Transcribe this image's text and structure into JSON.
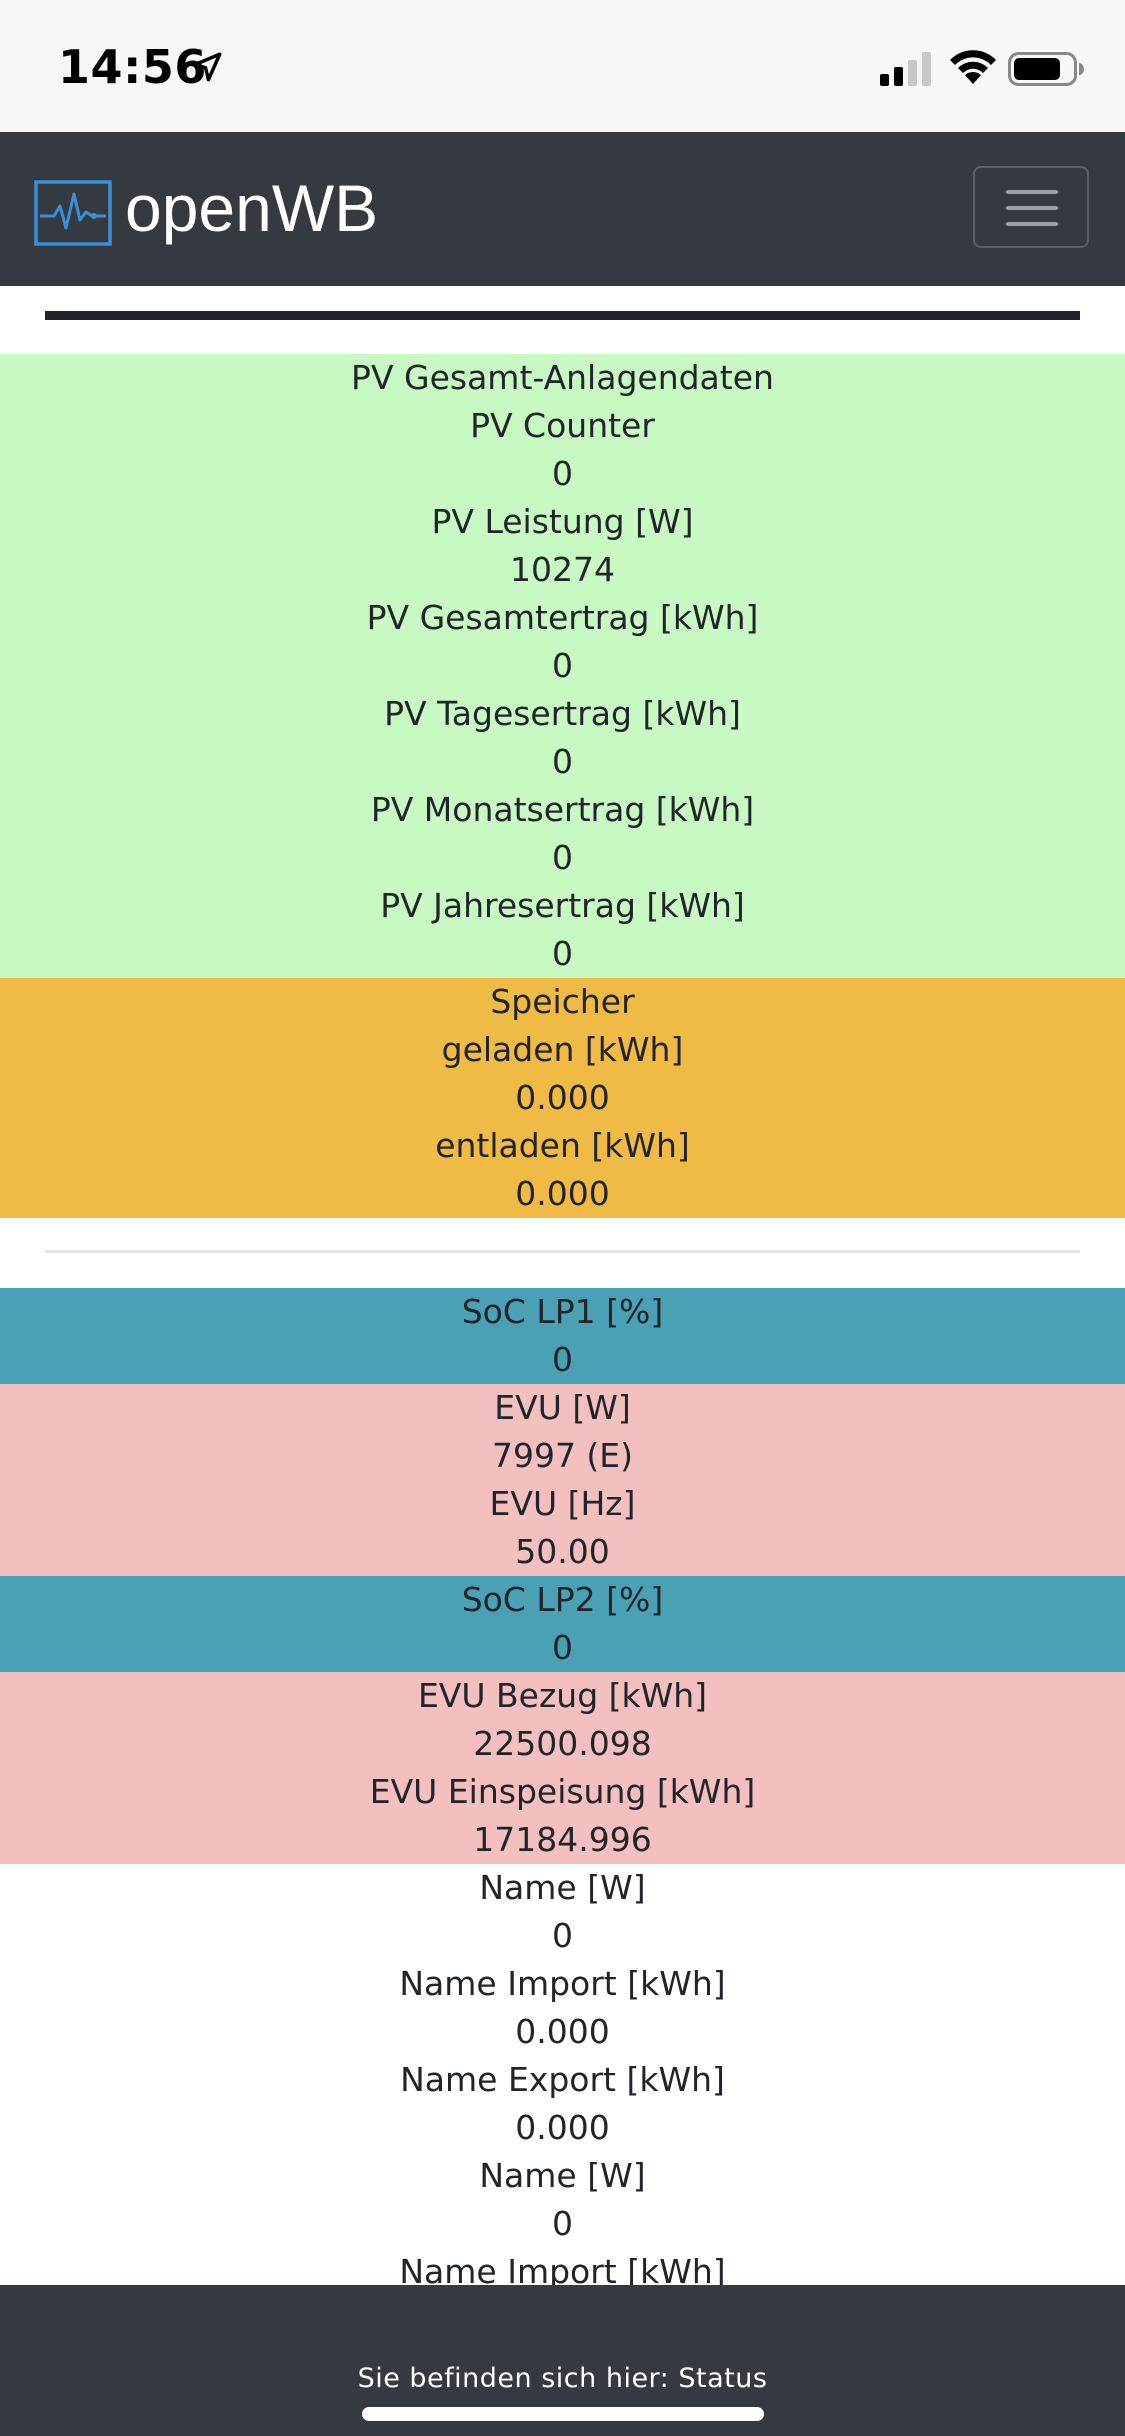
{
  "status_bar": {
    "time": "14:56",
    "icons": [
      "location-arrow-icon",
      "cellular-signal-icon",
      "wifi-icon",
      "battery-icon"
    ]
  },
  "navbar": {
    "brand": "openWB",
    "logo_icon": "pulse-chart-icon",
    "toggle_icon": "hamburger-menu-icon"
  },
  "pv": {
    "title": "PV Gesamt-Anlagendaten",
    "counter_label": "PV Counter",
    "counter_value": "0",
    "leistung_label": "PV Leistung [W]",
    "leistung_value": "10274",
    "gesamtertrag_label": "PV Gesamtertrag [kWh]",
    "gesamtertrag_value": "0",
    "tagesertrag_label": "PV Tagesertrag [kWh]",
    "tagesertrag_value": "0",
    "monatsertrag_label": "PV Monatsertrag [kWh]",
    "monatsertrag_value": "0",
    "jahresertrag_label": "PV Jahresertrag [kWh]",
    "jahresertrag_value": "0"
  },
  "speicher": {
    "title": "Speicher",
    "geladen_label": "geladen [kWh]",
    "geladen_value": "0.000",
    "entladen_label": "entladen [kWh]",
    "entladen_value": "0.000"
  },
  "soc_lp1": {
    "label": "SoC LP1 [%]",
    "value": "0"
  },
  "evu": {
    "watt_label": "EVU [W]",
    "watt_value": "7997 (E)",
    "hz_label": "EVU [Hz]",
    "hz_value": "50.00"
  },
  "soc_lp2": {
    "label": "SoC LP2 [%]",
    "value": "0"
  },
  "evu_energy": {
    "bezug_label": "EVU Bezug [kWh]",
    "bezug_value": "22500.098",
    "einspeisung_label": "EVU Einspeisung [kWh]",
    "einspeisung_value": "17184.996"
  },
  "devices": {
    "name1_w_label": "Name [W]",
    "name1_w_value": "0",
    "name1_import_label": "Name Import [kWh]",
    "name1_import_value": "0.000",
    "name1_export_label": "Name Export [kWh]",
    "name1_export_value": "0.000",
    "name2_w_label": "Name [W]",
    "name2_w_value": "0",
    "name2_import_label": "Name Import [kWh]"
  },
  "footer": {
    "location_text": "Sie befinden sich hier: Status"
  },
  "colors": {
    "navbar": "#343a40",
    "pv_green": "#c8f9c3",
    "speicher_orange": "#f0bb44",
    "soc_blue": "#4aa1b5",
    "evu_pink": "#f3bfbf"
  }
}
